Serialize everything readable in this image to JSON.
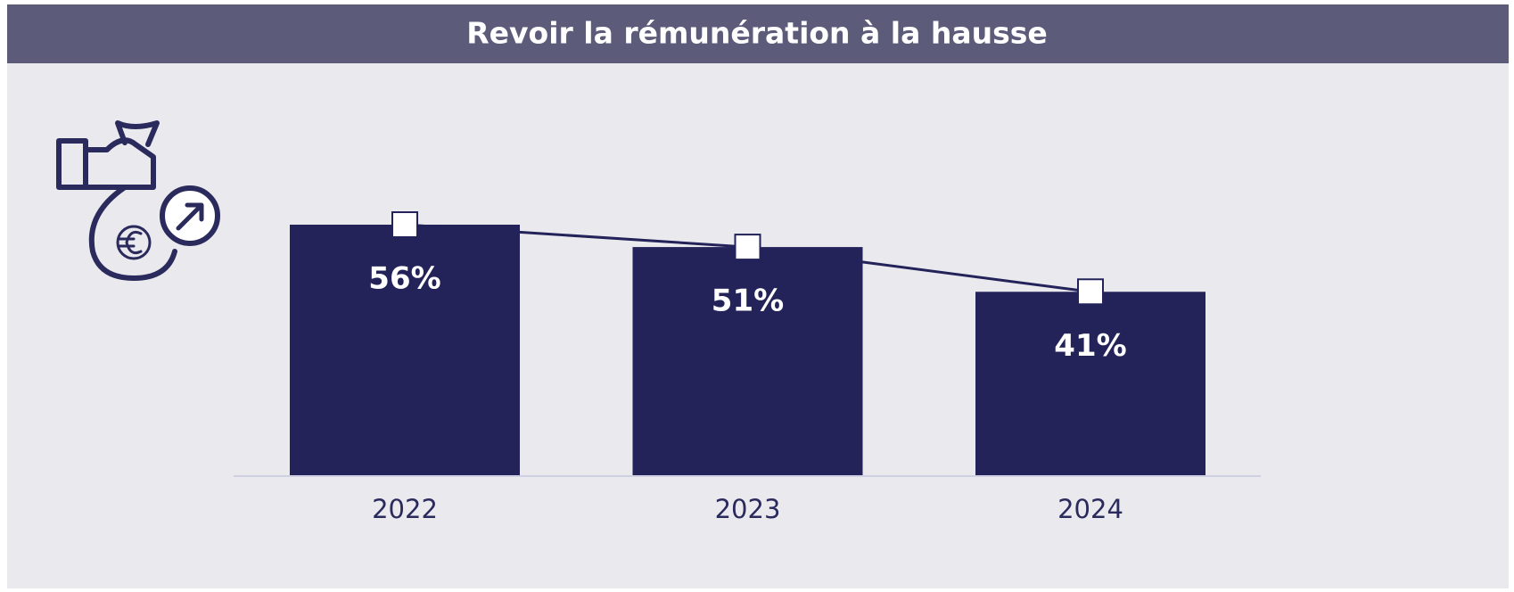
{
  "chart_data": {
    "type": "bar",
    "title": "Revoir la rémunération à la hausse",
    "categories": [
      "2022",
      "2023",
      "2024"
    ],
    "values": [
      56,
      51,
      41
    ],
    "value_labels": [
      "56%",
      "51%",
      "41%"
    ],
    "color": "#23235a",
    "line_color": "#23235a"
  }
}
